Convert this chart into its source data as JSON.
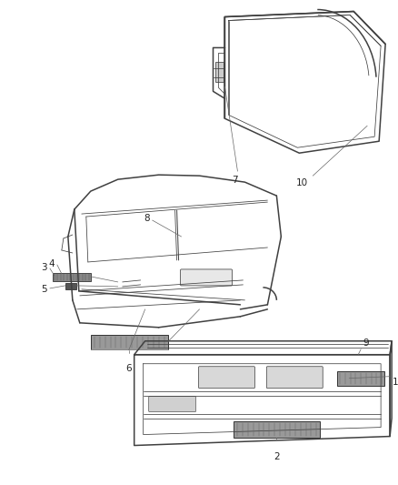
{
  "bg_color": "#ffffff",
  "line_color": "#404040",
  "label_color": "#222222",
  "fig_width": 4.39,
  "fig_height": 5.33,
  "dpi": 100,
  "lw_main": 1.1,
  "lw_thin": 0.55,
  "lw_inner": 0.7,
  "label_fs": 7.5,
  "badge_color": "#888888",
  "badge_edge": "#444444"
}
